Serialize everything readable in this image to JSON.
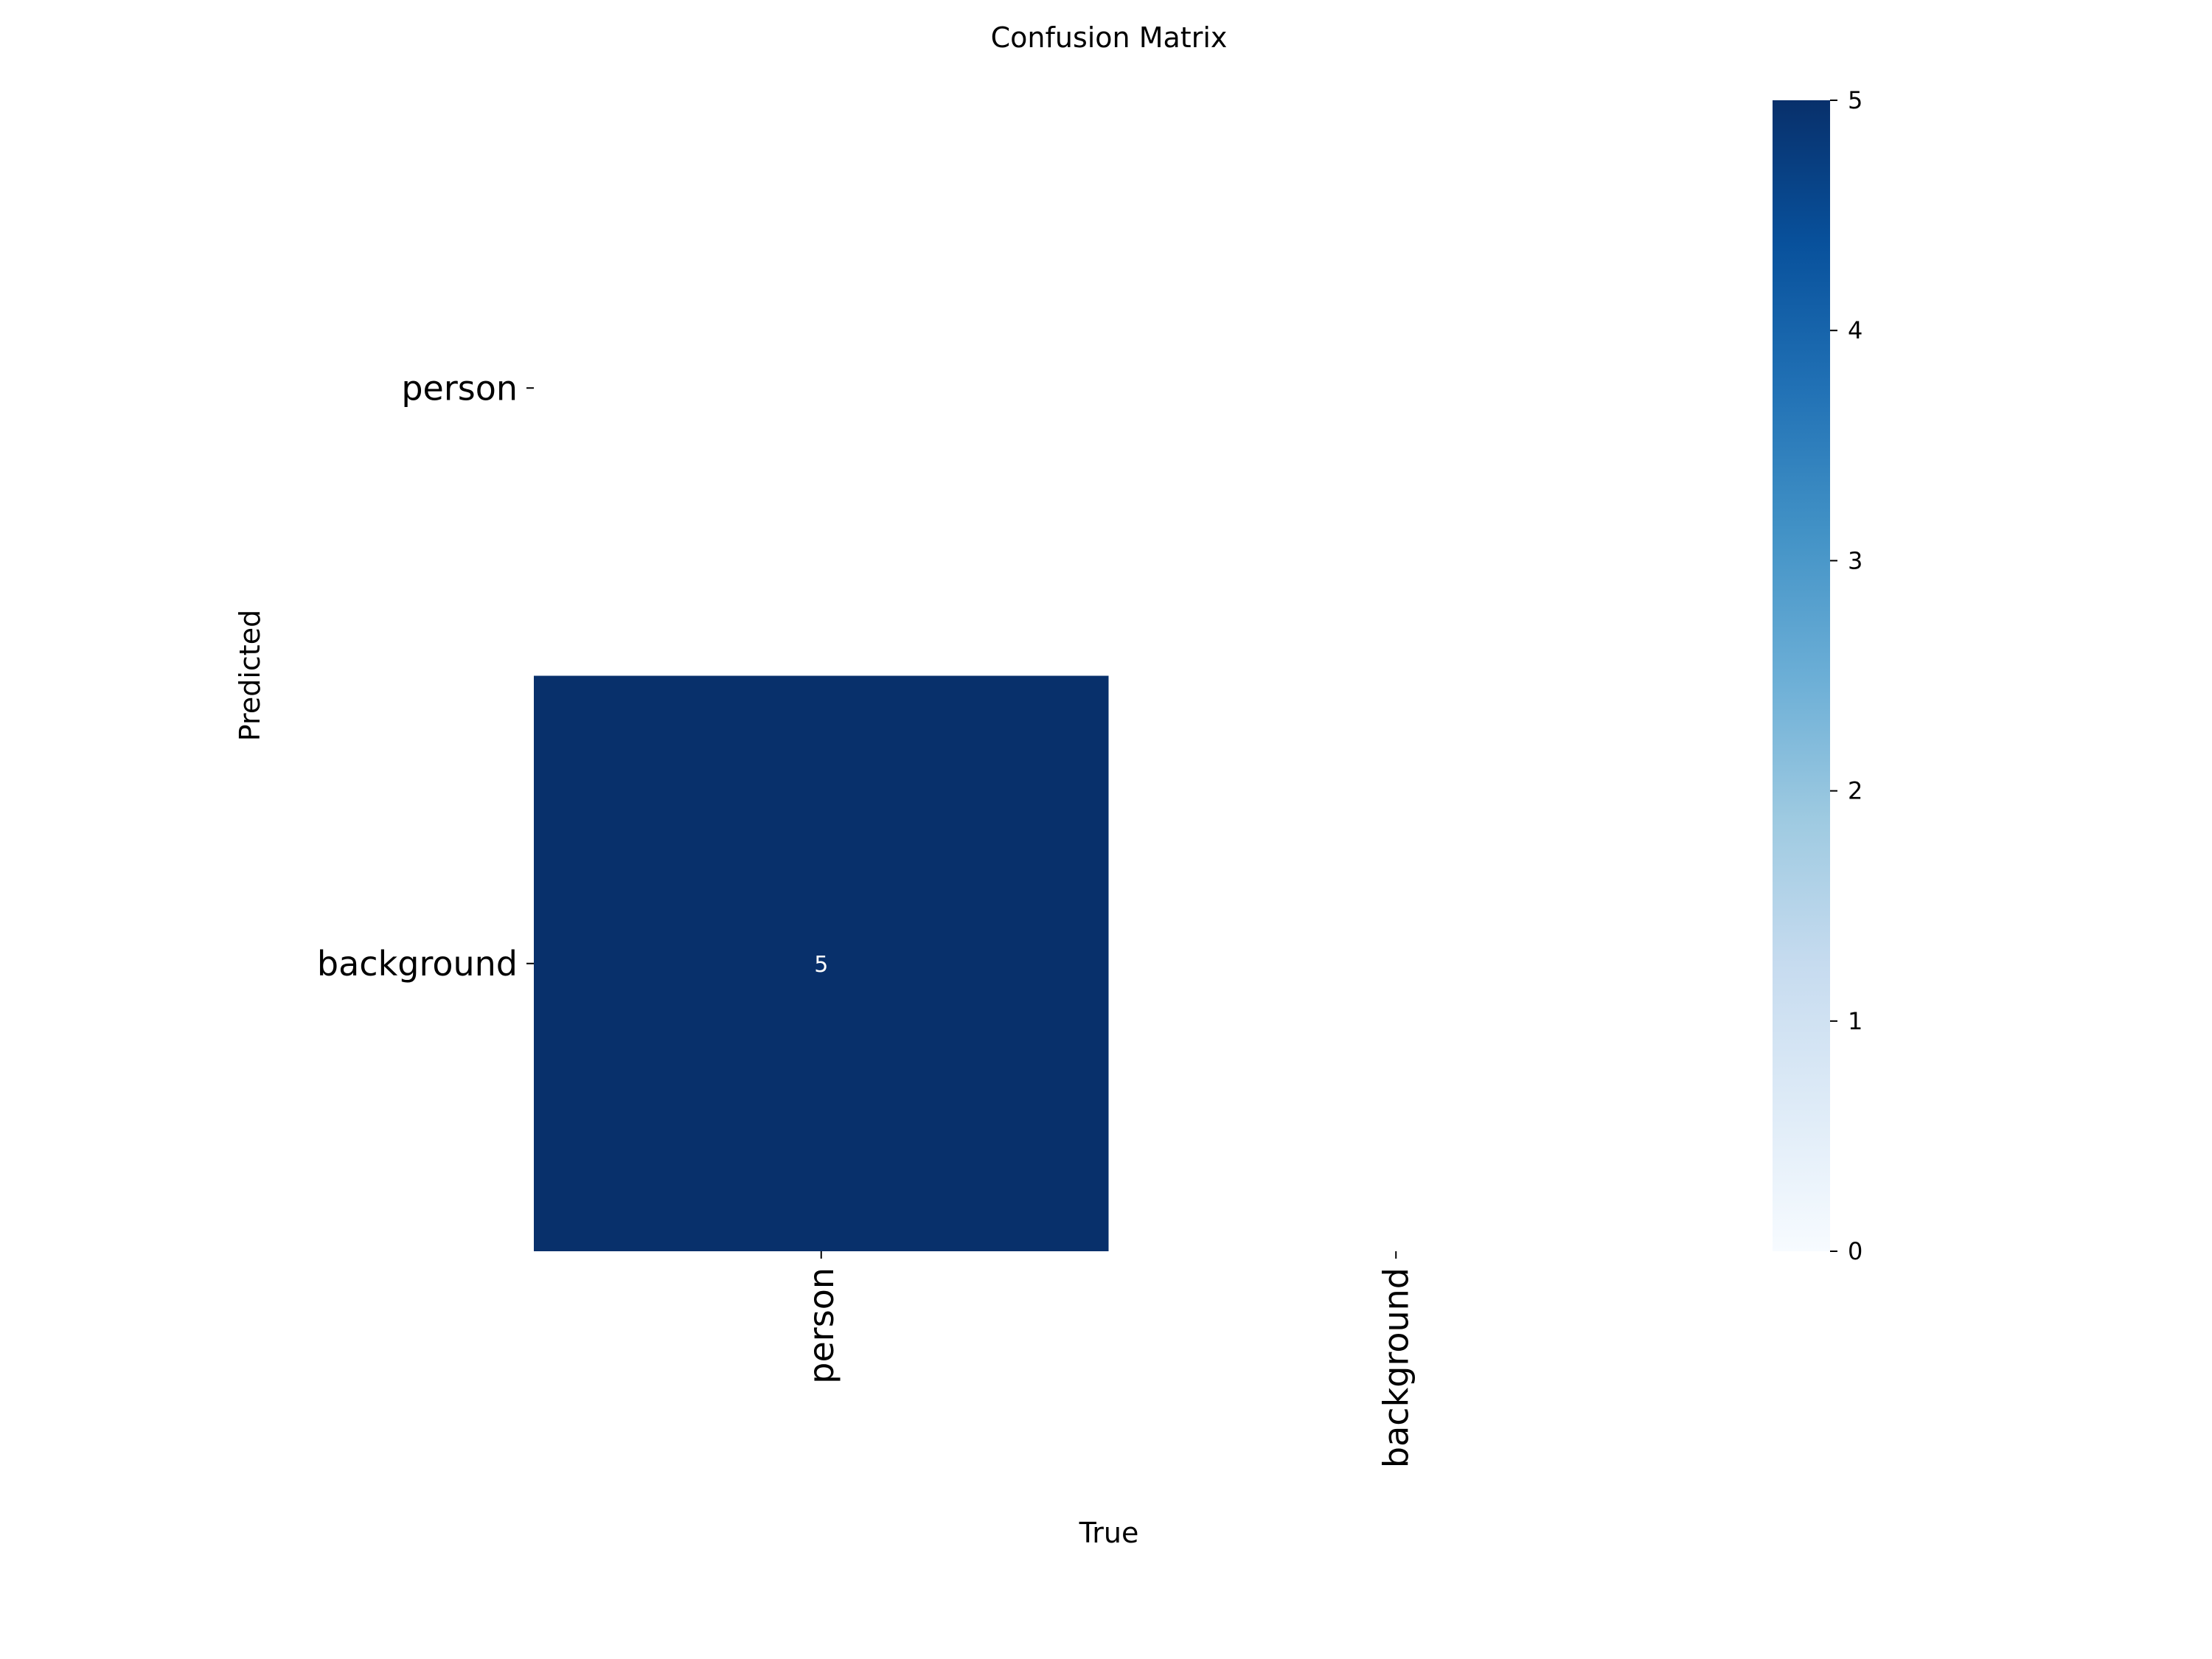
{
  "chart_data": {
    "type": "heatmap",
    "title": "Confusion Matrix",
    "xlabel": "True",
    "ylabel": "Predicted",
    "x_categories": [
      "person",
      "background"
    ],
    "y_categories": [
      "person",
      "background"
    ],
    "values": [
      [
        null,
        null
      ],
      [
        5,
        null
      ]
    ],
    "annotations": [
      [
        "",
        ""
      ],
      [
        "5",
        ""
      ]
    ],
    "colormap": "Blues",
    "colorbar": {
      "range": [
        0,
        5
      ],
      "ticks": [
        "0",
        "1",
        "2",
        "3",
        "4",
        "5"
      ]
    },
    "grid": false
  }
}
